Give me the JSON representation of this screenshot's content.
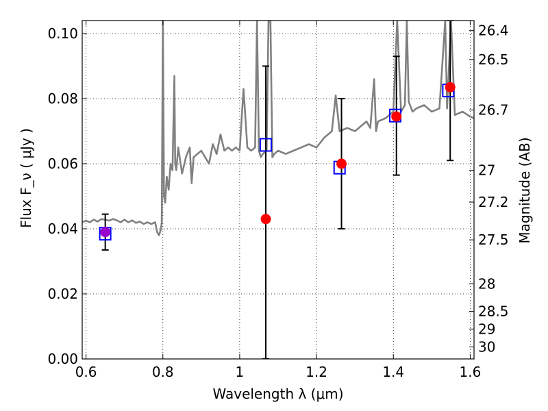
{
  "chart_data": {
    "type": "scatter",
    "xlabel": "Wavelength  λ (μm)",
    "ylabel": "Flux  F_ν ( μJy )",
    "ylabel_right": "Magnitude (AB)",
    "xlim": [
      0.59,
      1.61
    ],
    "ylim": [
      0.0,
      0.104
    ],
    "grid": true,
    "x_ticks": [
      0.6,
      0.8,
      1.0,
      1.2,
      1.4,
      1.6
    ],
    "x_tick_labels": [
      "0.6",
      "0.8",
      "1",
      "1.2",
      "1.4",
      "1.6"
    ],
    "y_ticks": [
      0.0,
      0.02,
      0.04,
      0.06,
      0.08,
      0.1
    ],
    "y_tick_labels": [
      "0.00",
      "0.02",
      "0.04",
      "0.06",
      "0.08",
      "0.10"
    ],
    "right_ticks": [
      {
        "label": "26.4",
        "flux": 0.1009
      },
      {
        "label": "26.5",
        "flux": 0.092
      },
      {
        "label": "26.7",
        "flux": 0.0765
      },
      {
        "label": "27",
        "flux": 0.058
      },
      {
        "label": "27.2",
        "flux": 0.0482
      },
      {
        "label": "27.5",
        "flux": 0.0366
      },
      {
        "label": "28",
        "flux": 0.0231
      },
      {
        "label": "28.5",
        "flux": 0.0146
      },
      {
        "label": "29",
        "flux": 0.0092
      },
      {
        "label": "30",
        "flux": 0.0037
      }
    ],
    "series": [
      {
        "kind": "line",
        "color": "#808080",
        "x": [
          0.59,
          0.6,
          0.61,
          0.62,
          0.63,
          0.64,
          0.65,
          0.66,
          0.67,
          0.68,
          0.69,
          0.7,
          0.71,
          0.72,
          0.73,
          0.74,
          0.75,
          0.76,
          0.77,
          0.78,
          0.785,
          0.79,
          0.795,
          0.797,
          0.8,
          0.803,
          0.806,
          0.81,
          0.815,
          0.82,
          0.825,
          0.83,
          0.832,
          0.835,
          0.84,
          0.85,
          0.86,
          0.87,
          0.875,
          0.88,
          0.89,
          0.9,
          0.91,
          0.92,
          0.93,
          0.94,
          0.95,
          0.96,
          0.97,
          0.98,
          0.99,
          1.0,
          1.01,
          1.02,
          1.03,
          1.04,
          1.045,
          1.05,
          1.055,
          1.06,
          1.07,
          1.075,
          1.08,
          1.085,
          1.09,
          1.1,
          1.12,
          1.14,
          1.16,
          1.18,
          1.2,
          1.22,
          1.24,
          1.25,
          1.26,
          1.28,
          1.3,
          1.32,
          1.33,
          1.34,
          1.35,
          1.355,
          1.36,
          1.38,
          1.4,
          1.41,
          1.42,
          1.43,
          1.435,
          1.44,
          1.45,
          1.46,
          1.48,
          1.5,
          1.52,
          1.535,
          1.54,
          1.55,
          1.56,
          1.58,
          1.6,
          1.61
        ],
        "y": [
          0.042,
          0.0425,
          0.042,
          0.0428,
          0.0422,
          0.043,
          0.0428,
          0.0425,
          0.043,
          0.0426,
          0.042,
          0.0428,
          0.042,
          0.0426,
          0.0418,
          0.0422,
          0.0415,
          0.042,
          0.0415,
          0.042,
          0.039,
          0.038,
          0.04,
          0.042,
          0.104,
          0.05,
          0.048,
          0.056,
          0.052,
          0.06,
          0.058,
          0.087,
          0.06,
          0.058,
          0.065,
          0.057,
          0.062,
          0.065,
          0.054,
          0.062,
          0.063,
          0.064,
          0.062,
          0.06,
          0.066,
          0.063,
          0.069,
          0.064,
          0.065,
          0.064,
          0.065,
          0.064,
          0.083,
          0.065,
          0.064,
          0.065,
          0.104,
          0.064,
          0.062,
          0.063,
          0.064,
          0.104,
          0.104,
          0.062,
          0.063,
          0.064,
          0.063,
          0.064,
          0.065,
          0.066,
          0.065,
          0.068,
          0.07,
          0.081,
          0.07,
          0.071,
          0.07,
          0.072,
          0.073,
          0.071,
          0.086,
          0.07,
          0.073,
          0.074,
          0.076,
          0.104,
          0.076,
          0.078,
          0.104,
          0.079,
          0.076,
          0.077,
          0.078,
          0.076,
          0.077,
          0.104,
          0.077,
          0.104,
          0.075,
          0.076,
          0.0745,
          0.074
        ]
      },
      {
        "kind": "errorbar",
        "color": "#000000",
        "points": [
          {
            "x": 0.65,
            "lo": 0.0335,
            "hi": 0.0445
          },
          {
            "x": 1.068,
            "lo": 0.0,
            "hi": 0.09
          },
          {
            "x": 1.265,
            "lo": 0.04,
            "hi": 0.08
          },
          {
            "x": 1.408,
            "lo": 0.0565,
            "hi": 0.093
          },
          {
            "x": 1.548,
            "lo": 0.061,
            "hi": 0.104
          }
        ]
      },
      {
        "kind": "square_markers",
        "color": "#0000ff",
        "x": [
          0.65,
          1.068,
          1.26,
          1.405,
          1.543
        ],
        "y": [
          0.0385,
          0.0658,
          0.0588,
          0.0748,
          0.0825
        ]
      },
      {
        "kind": "circle_markers",
        "color": "#ff0000",
        "highlight_color": "#9900cc",
        "x": [
          0.65,
          1.068,
          1.265,
          1.408,
          1.548
        ],
        "y": [
          0.039,
          0.043,
          0.06,
          0.0745,
          0.0835
        ],
        "point_colors": [
          "#9900cc",
          "#ff0000",
          "#ff0000",
          "#ff0000",
          "#ff0000"
        ]
      }
    ]
  }
}
